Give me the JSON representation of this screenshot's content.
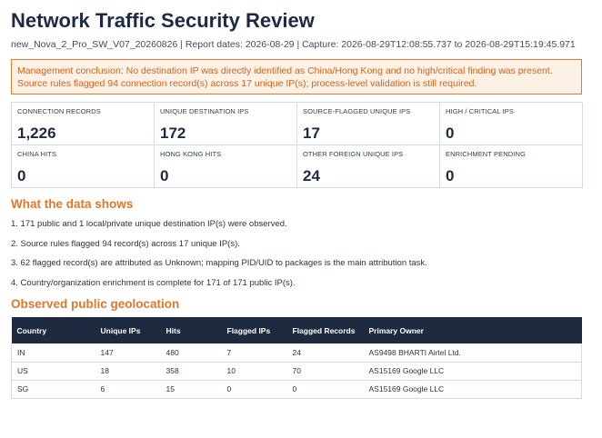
{
  "report": {
    "title": "Network Traffic Security Review",
    "subtitle": "new_Nova_2_Pro_SW_V07_20260826 | Report dates: 2026-08-29 | Capture: 2026-08-29T12:08:55.737 to 2026-08-29T15:19:45.971",
    "conclusion": "Management conclusion: No destination IP was directly identified as China/Hong Kong and no high/critical finding was present. Source rules flagged 94 connection record(s) across 17 unique IP(s); process-level validation is still required."
  },
  "metrics": [
    {
      "label": "CONNECTION RECORDS",
      "value": "1,226"
    },
    {
      "label": "UNIQUE DESTINATION IPS",
      "value": "172"
    },
    {
      "label": "SOURCE-FLAGGED UNIQUE IPS",
      "value": "17"
    },
    {
      "label": "HIGH / CRITICAL IPS",
      "value": "0"
    },
    {
      "label": "CHINA HITS",
      "value": "0"
    },
    {
      "label": "HONG KONG HITS",
      "value": "0"
    },
    {
      "label": "OTHER FOREIGN UNIQUE IPS",
      "value": "24"
    },
    {
      "label": "ENRICHMENT PENDING",
      "value": "0"
    }
  ],
  "findings": {
    "heading": "What the data shows",
    "items": [
      "1. 171 public and 1 local/private unique destination IP(s) were observed.",
      "2. Source rules flagged 94 record(s) across 17 unique IP(s).",
      "3. 62 flagged record(s) are attributed as Unknown; mapping PID/UID to packages is the main attribution task.",
      "4. Country/organization enrichment is complete for 171 of 171 public IP(s)."
    ]
  },
  "geo": {
    "heading": "Observed public geolocation",
    "columns": [
      "Country",
      "Unique IPs",
      "Hits",
      "Flagged IPs",
      "Flagged Records",
      "Primary Owner"
    ],
    "rows": [
      [
        "IN",
        "147",
        "480",
        "7",
        "24",
        "AS9498 BHARTI Airtel Ltd."
      ],
      [
        "US",
        "18",
        "358",
        "10",
        "70",
        "AS15169 Google LLC"
      ],
      [
        "SG",
        "6",
        "15",
        "0",
        "0",
        "AS15169 Google LLC"
      ]
    ]
  },
  "colors": {
    "accent_orange": "#e0772d",
    "header_navy": "#1d2a40",
    "alert_bg": "#fdf1e6"
  }
}
